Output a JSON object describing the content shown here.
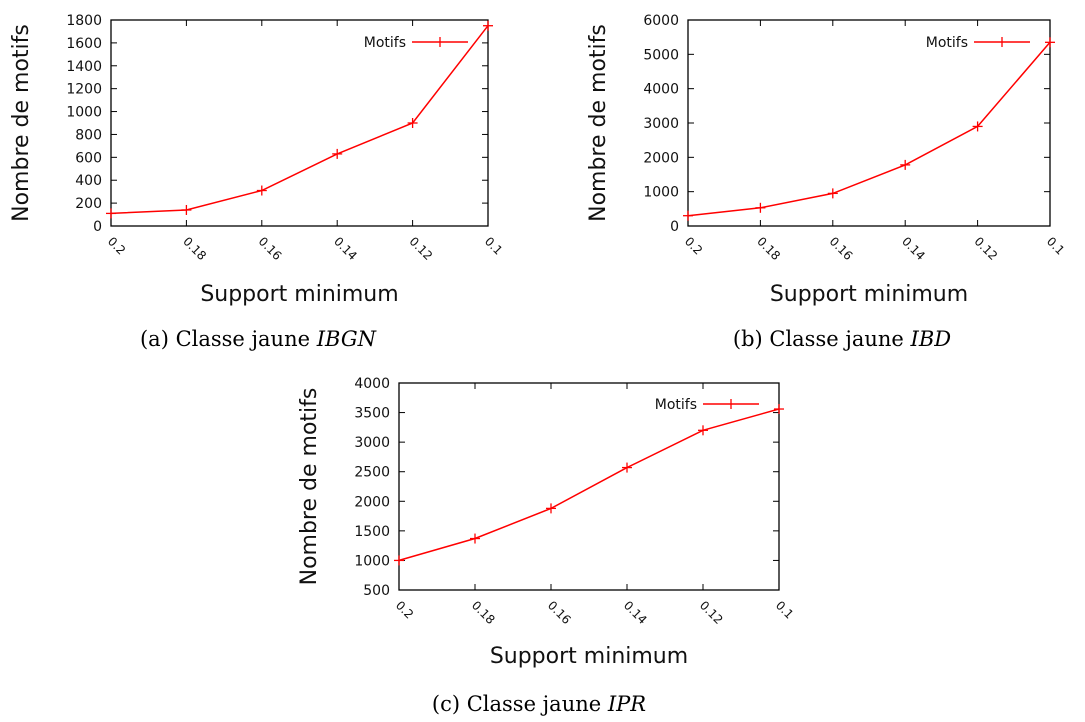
{
  "chart_data": [
    {
      "type": "line",
      "caption": {
        "prefix": "(a) Classe jaune ",
        "name": "IBGN"
      },
      "xlabel": "Support minimum",
      "ylabel": "Nombre de motifs",
      "x": [
        0.2,
        0.18,
        0.16,
        0.14,
        0.12,
        0.1
      ],
      "x_tick_labels": [
        "0.2",
        "0.18",
        "0.16",
        "0.14",
        "0.12",
        "0.1"
      ],
      "xlim": [
        0.2,
        0.1
      ],
      "ylim": [
        0,
        1800
      ],
      "y_ticks": [
        0,
        200,
        400,
        600,
        800,
        1000,
        1200,
        1400,
        1600,
        1800
      ],
      "legend": "top-right",
      "grid": false,
      "series": [
        {
          "name": "Motifs",
          "color": "#ff0000",
          "values": [
            110,
            140,
            310,
            630,
            900,
            1750
          ]
        }
      ]
    },
    {
      "type": "line",
      "caption": {
        "prefix": "(b) Classe jaune ",
        "name": "IBD"
      },
      "xlabel": "Support minimum",
      "ylabel": "Nombre de motifs",
      "x": [
        0.2,
        0.18,
        0.16,
        0.14,
        0.12,
        0.1
      ],
      "x_tick_labels": [
        "0.2",
        "0.18",
        "0.16",
        "0.14",
        "0.12",
        "0.1"
      ],
      "xlim": [
        0.2,
        0.1
      ],
      "ylim": [
        0,
        6000
      ],
      "y_ticks": [
        0,
        1000,
        2000,
        3000,
        4000,
        5000,
        6000
      ],
      "legend": "top-right",
      "grid": false,
      "series": [
        {
          "name": "Motifs",
          "color": "#ff0000",
          "values": [
            300,
            530,
            950,
            1780,
            2900,
            5350
          ]
        }
      ]
    },
    {
      "type": "line",
      "caption": {
        "prefix": "(c) Classe jaune ",
        "name": "IPR"
      },
      "xlabel": "Support minimum",
      "ylabel": "Nombre de motifs",
      "x": [
        0.2,
        0.18,
        0.16,
        0.14,
        0.12,
        0.1
      ],
      "x_tick_labels": [
        "0.2",
        "0.18",
        "0.16",
        "0.14",
        "0.12",
        "0.1"
      ],
      "xlim": [
        0.2,
        0.1
      ],
      "ylim": [
        500,
        4000
      ],
      "y_ticks": [
        500,
        1000,
        1500,
        2000,
        2500,
        3000,
        3500,
        4000
      ],
      "legend": "top-right",
      "grid": false,
      "series": [
        {
          "name": "Motifs",
          "color": "#ff0000",
          "values": [
            1000,
            1370,
            1880,
            2570,
            3200,
            3560
          ]
        }
      ]
    }
  ]
}
